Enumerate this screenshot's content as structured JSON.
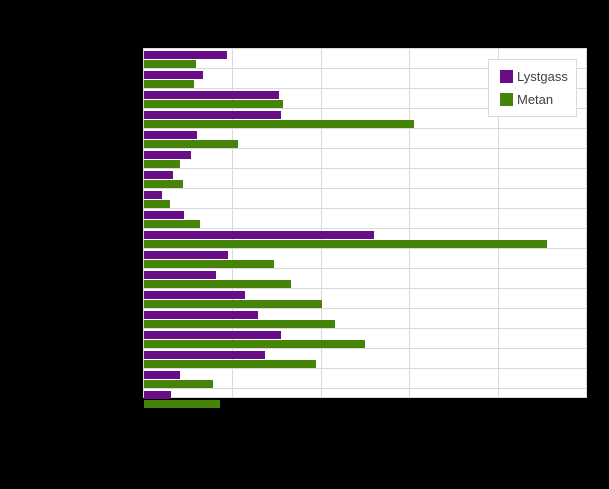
{
  "colors": {
    "page_background": "#000000",
    "plot_background": "#ffffff",
    "gridline": "#d9d9d9",
    "plot_border": "#d9d9d9",
    "legend_background": "#ffffff",
    "legend_border": "#d9d9d9",
    "legend_text": "#3f3f3f"
  },
  "chart_data": {
    "type": "bar",
    "orientation": "horizontal",
    "num_categories": 18,
    "category_labels_visible": false,
    "axis": {
      "tick_labels_visible": false,
      "gridline_positions_pct": [
        0,
        20,
        40,
        60,
        80,
        100
      ]
    },
    "legend": {
      "position": "top-right"
    },
    "series": [
      {
        "name": "Lystgass",
        "color": "#680d86",
        "values_pct": [
          18.7,
          13.3,
          30.5,
          30.9,
          11.9,
          10.6,
          6.5,
          4.1,
          9.0,
          52.0,
          19.1,
          16.4,
          22.8,
          25.9,
          31.1,
          27.4,
          8.1,
          6.2
        ]
      },
      {
        "name": "Metan",
        "color": "#458408",
        "values_pct": [
          11.7,
          11.3,
          31.4,
          61.0,
          21.3,
          8.1,
          8.8,
          5.9,
          12.6,
          91.2,
          29.3,
          33.3,
          40.3,
          43.1,
          50.0,
          38.9,
          15.6,
          17.3
        ]
      }
    ]
  }
}
